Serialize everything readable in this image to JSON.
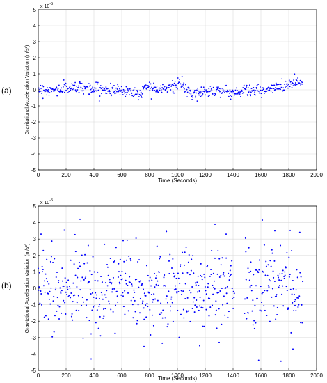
{
  "chart_data": [
    {
      "type": "scatter",
      "panel_label": "(a)",
      "xlabel": "Time (Seconds)",
      "ylabel": "Gravitational Acceleration Variation (m/s²)",
      "y_exponent": "x 10",
      "y_exponent_power": "-5",
      "xlim": [
        0,
        2000
      ],
      "ylim": [
        -5,
        5
      ],
      "xticks": [
        0,
        200,
        400,
        600,
        800,
        1000,
        1200,
        1400,
        1600,
        1800,
        2000
      ],
      "yticks": [
        -5,
        -4,
        -3,
        -2,
        -1,
        0,
        1,
        2,
        3,
        4,
        5
      ],
      "grid": true,
      "marker_color": "#0000ff",
      "generator": {
        "kind": "dense",
        "x_start": 0,
        "x_end": 1900,
        "count": 560,
        "noise": 0.18,
        "gaps": [],
        "trend_x": [
          0,
          100,
          200,
          300,
          400,
          500,
          600,
          700,
          740,
          760,
          800,
          900,
          1000,
          1020,
          1050,
          1100,
          1200,
          1300,
          1400,
          1500,
          1600,
          1700,
          1800,
          1860,
          1900
        ],
        "trend_y": [
          0.05,
          -0.05,
          0.1,
          0.2,
          0.05,
          0.0,
          -0.05,
          -0.15,
          -0.35,
          0.25,
          0.2,
          0.1,
          0.25,
          0.55,
          0.05,
          -0.3,
          -0.1,
          0.0,
          -0.2,
          0.0,
          -0.1,
          0.1,
          0.35,
          0.55,
          0.4
        ]
      }
    },
    {
      "type": "scatter",
      "panel_label": "(b)",
      "xlabel": "Time (Seconds)",
      "ylabel": "Gravitational Acceleration Variation (m/s²)",
      "y_exponent": "x 10",
      "y_exponent_power": "-5",
      "xlim": [
        0,
        2000
      ],
      "ylim": [
        -5,
        5
      ],
      "xticks": [
        0,
        200,
        400,
        600,
        800,
        1000,
        1200,
        1400,
        1600,
        1800,
        2000
      ],
      "yticks": [
        -5,
        -4,
        -3,
        -2,
        -1,
        0,
        1,
        2,
        3,
        4,
        5
      ],
      "grid": true,
      "marker_color": "#0000ff",
      "generator": {
        "kind": "sparse",
        "x_start": 0,
        "x_end": 1900,
        "count": 620,
        "noise": 1.3,
        "gaps": [
          [
            1410,
            1480
          ]
        ],
        "trend_x": [
          0,
          1900
        ],
        "trend_y": [
          0,
          0
        ]
      },
      "outliers": [
        {
          "x": 20,
          "y": 3.3
        },
        {
          "x": 300,
          "y": 4.2
        },
        {
          "x": 610,
          "y": 2.9
        },
        {
          "x": 1270,
          "y": 3.9
        },
        {
          "x": 1350,
          "y": 3.3
        },
        {
          "x": 1610,
          "y": 4.15
        },
        {
          "x": 1700,
          "y": 3.5
        },
        {
          "x": 380,
          "y": -4.3
        },
        {
          "x": 760,
          "y": -3.55
        },
        {
          "x": 1300,
          "y": -3.3
        },
        {
          "x": 1160,
          "y": -3.5
        },
        {
          "x": 1830,
          "y": -3.7
        }
      ]
    }
  ]
}
